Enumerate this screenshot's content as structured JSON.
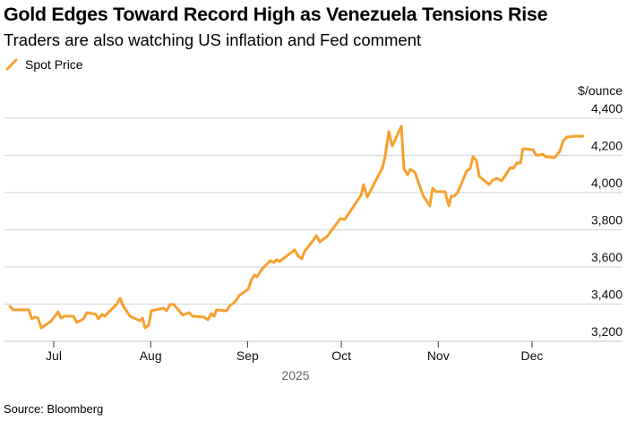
{
  "title": "Gold Edges Toward Record High as Venezuela Tensions Rise",
  "subtitle": "Traders are also watching US inflation and Fed comment",
  "source": "Source: Bloomberg",
  "colors": {
    "line": "#f7a030",
    "grid": "#d9d9d9",
    "axis": "#333333",
    "year": "#666666"
  },
  "chart_data": {
    "type": "line",
    "title": "Gold Edges Toward Record High as Venezuela Tensions Rise",
    "subtitle": "Traders are also watching US inflation and Fed comment",
    "xlabel": "2025",
    "ylabel": "$/ounce",
    "x_unit": "days since Jul 1, 2025",
    "xlim": [
      -16,
      182
    ],
    "ylim": [
      3200,
      4400
    ],
    "yticks": [
      3200,
      3400,
      3600,
      3800,
      4000,
      4200,
      4400
    ],
    "ytick_labels": [
      "3,200",
      "3,400",
      "3,600",
      "3,800",
      "4,000",
      "4,200",
      "4,400"
    ],
    "xticks": [
      0,
      31,
      62,
      92,
      123,
      153
    ],
    "xtick_labels": [
      "Jul",
      "Aug",
      "Sep",
      "Oct",
      "Nov",
      "Dec"
    ],
    "grid": true,
    "legend_position": "top-left",
    "series": [
      {
        "name": "Spot Price",
        "points": [
          [
            -14,
            3389
          ],
          [
            -13,
            3369
          ],
          [
            -8,
            3369
          ],
          [
            -7,
            3320
          ],
          [
            -6,
            3330
          ],
          [
            -5,
            3325
          ],
          [
            -4,
            3272
          ],
          [
            -1,
            3306
          ],
          [
            0.6,
            3340
          ],
          [
            1.4,
            3359
          ],
          [
            2.3,
            3325
          ],
          [
            3.4,
            3335
          ],
          [
            6.3,
            3335
          ],
          [
            7.4,
            3301
          ],
          [
            9.5,
            3320
          ],
          [
            10.6,
            3354
          ],
          [
            13.5,
            3345
          ],
          [
            14.3,
            3320
          ],
          [
            15.5,
            3345
          ],
          [
            16.3,
            3335
          ],
          [
            20.1,
            3398
          ],
          [
            21.2,
            3431
          ],
          [
            22.3,
            3388
          ],
          [
            24.4,
            3335
          ],
          [
            27.5,
            3311
          ],
          [
            28.4,
            3325
          ],
          [
            29.2,
            3272
          ],
          [
            30.4,
            3287
          ],
          [
            31.2,
            3364
          ],
          [
            35.2,
            3378
          ],
          [
            36.1,
            3364
          ],
          [
            37.2,
            3398
          ],
          [
            38.4,
            3398
          ],
          [
            41.3,
            3340
          ],
          [
            43.3,
            3354
          ],
          [
            44.4,
            3335
          ],
          [
            48.1,
            3330
          ],
          [
            49.3,
            3315
          ],
          [
            50.4,
            3349
          ],
          [
            51.3,
            3335
          ],
          [
            52.1,
            3369
          ],
          [
            55.3,
            3364
          ],
          [
            56.4,
            3393
          ],
          [
            57.3,
            3402
          ],
          [
            58.2,
            3417
          ],
          [
            59.3,
            3446
          ],
          [
            62.2,
            3480
          ],
          [
            63.3,
            3533
          ],
          [
            64.2,
            3557
          ],
          [
            65.0,
            3547
          ],
          [
            66.5,
            3586
          ],
          [
            69.3,
            3634
          ],
          [
            70.5,
            3624
          ],
          [
            71.3,
            3639
          ],
          [
            72.2,
            3629
          ],
          [
            77.1,
            3692
          ],
          [
            78.2,
            3658
          ],
          [
            79.4,
            3644
          ],
          [
            80.2,
            3682
          ],
          [
            83.1,
            3745
          ],
          [
            84.0,
            3769
          ],
          [
            85.1,
            3735
          ],
          [
            87.4,
            3764
          ],
          [
            91.7,
            3860
          ],
          [
            93.1,
            3855
          ],
          [
            98.3,
            3986
          ],
          [
            99.1,
            4043
          ],
          [
            100.3,
            3976
          ],
          [
            105.2,
            4135
          ],
          [
            106.0,
            4193
          ],
          [
            107.2,
            4328
          ],
          [
            108.3,
            4251
          ],
          [
            111.2,
            4357
          ],
          [
            112.0,
            4130
          ],
          [
            113.2,
            4096
          ],
          [
            114.0,
            4125
          ],
          [
            115.5,
            4111
          ],
          [
            118.1,
            3986
          ],
          [
            120.3,
            3928
          ],
          [
            121.2,
            4024
          ],
          [
            122.3,
            4005
          ],
          [
            125.2,
            4005
          ],
          [
            126.4,
            3928
          ],
          [
            127.2,
            3981
          ],
          [
            128.1,
            3981
          ],
          [
            129.2,
            4000
          ],
          [
            132.1,
            4116
          ],
          [
            133.2,
            4130
          ],
          [
            134.1,
            4193
          ],
          [
            135.2,
            4173
          ],
          [
            136.1,
            4087
          ],
          [
            139.3,
            4043
          ],
          [
            140.4,
            4067
          ],
          [
            141.8,
            4077
          ],
          [
            143.3,
            4063
          ],
          [
            146.1,
            4135
          ],
          [
            147.0,
            4130
          ],
          [
            148.1,
            4159
          ],
          [
            149.3,
            4159
          ],
          [
            150.1,
            4236
          ],
          [
            153.3,
            4231
          ],
          [
            154.2,
            4202
          ],
          [
            155.6,
            4202
          ],
          [
            156.4,
            4207
          ],
          [
            157.3,
            4193
          ],
          [
            160.2,
            4188
          ],
          [
            161.9,
            4222
          ],
          [
            163.0,
            4280
          ],
          [
            164.2,
            4299
          ],
          [
            167.0,
            4304
          ],
          [
            168.2,
            4302
          ],
          [
            169.3,
            4304
          ]
        ]
      }
    ]
  }
}
